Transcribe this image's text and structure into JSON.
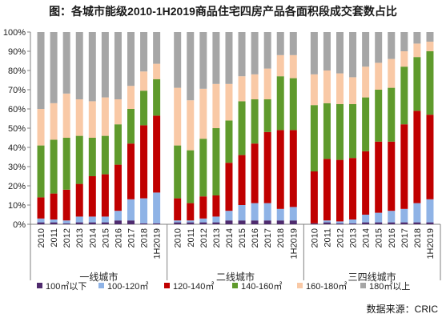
{
  "title": "图：各城市能级2010-1H2019商品住宅四房产品各面积段成交套数占比",
  "source": "数据来源：CRIC",
  "chart_data": {
    "type": "bar",
    "stacked": true,
    "ylim": [
      0,
      100
    ],
    "yticks": [
      "0%",
      "10%",
      "20%",
      "30%",
      "40%",
      "50%",
      "60%",
      "70%",
      "80%",
      "90%",
      "100%"
    ],
    "grid": false,
    "legend_position": "bottom",
    "groups": [
      {
        "name": "一线城市",
        "categories": [
          "2010",
          "2011",
          "2012",
          "2013",
          "2014",
          "2015",
          "2016",
          "2017",
          "2018",
          "1H2019"
        ],
        "series": [
          {
            "name": "100㎡以下",
            "color": "#4f2b6e",
            "values": [
              1,
              1,
              0.5,
              1,
              1,
              1,
              2,
              2,
              0.5,
              0.5
            ]
          },
          {
            "name": "100-120㎡",
            "color": "#8fb3e6",
            "values": [
              2,
              1.5,
              1.5,
              3,
              3,
              3,
              5,
              11,
              13,
              16
            ]
          },
          {
            "name": "120-140㎡",
            "color": "#c00000",
            "values": [
              11,
              13.5,
              16,
              17,
              21,
              22,
              24,
              29,
              38,
              40
            ]
          },
          {
            "name": "140-160㎡",
            "color": "#5f9a2c",
            "values": [
              27,
              28,
              27,
              25,
              20,
              20,
              21,
              18,
              18,
              19
            ]
          },
          {
            "name": "160-180㎡",
            "color": "#f9c9a6",
            "values": [
              19,
              19,
              23,
              19,
              19,
              20,
              13,
              12,
              10,
              8
            ]
          },
          {
            "name": "180㎡以上",
            "color": "#a6a6a6",
            "values": [
              40,
              37,
              32,
              35,
              36,
              34,
              35,
              28,
              20.5,
              16.5
            ]
          }
        ]
      },
      {
        "name": "二线城市",
        "categories": [
          "2010",
          "2011",
          "2012",
          "2013",
          "2014",
          "2015",
          "2016",
          "2017",
          "2018",
          "1H2019"
        ],
        "series": [
          {
            "name": "100㎡以下",
            "color": "#4f2b6e",
            "values": [
              1,
              1,
              1,
              1,
              2,
              2,
              2,
              2,
              2,
              2
            ]
          },
          {
            "name": "100-120㎡",
            "color": "#8fb3e6",
            "values": [
              1,
              1,
              2,
              3,
              5,
              8,
              9,
              9,
              6,
              7
            ]
          },
          {
            "name": "120-140㎡",
            "color": "#c00000",
            "values": [
              11.5,
              9,
              11.5,
              11,
              25,
              26,
              31,
              37,
              41,
              40
            ]
          },
          {
            "name": "140-160㎡",
            "color": "#5f9a2c",
            "values": [
              27.5,
              27.5,
              30,
              35,
              22,
              28,
              23,
              17,
              28,
              27
            ]
          },
          {
            "name": "160-180㎡",
            "color": "#f9c9a6",
            "values": [
              30,
              26,
              26,
              23,
              19,
              13,
              13,
              16,
              11,
              12
            ]
          },
          {
            "name": "180㎡以上",
            "color": "#a6a6a6",
            "values": [
              29,
              35.5,
              29.5,
              27,
              27,
              23,
              22,
              19,
              12,
              12
            ]
          }
        ]
      },
      {
        "name": "三四线城市",
        "categories": [
          "2010",
          "2011",
          "2012",
          "2013",
          "2014",
          "2015",
          "2016",
          "2017",
          "2018",
          "1H2019"
        ],
        "series": [
          {
            "name": "100㎡以下",
            "color": "#4f2b6e",
            "values": [
              0.5,
              1,
              0.5,
              0.5,
              1,
              1,
              1,
              1,
              1,
              1
            ]
          },
          {
            "name": "100-120㎡",
            "color": "#8fb3e6",
            "values": [
              0,
              1,
              1,
              2,
              4,
              5,
              6,
              7,
              10,
              12
            ]
          },
          {
            "name": "120-140㎡",
            "color": "#c00000",
            "values": [
              27,
              32,
              32,
              32,
              33,
              37,
              36,
              44,
              48,
              44
            ]
          },
          {
            "name": "140-160㎡",
            "color": "#5f9a2c",
            "values": [
              34.5,
              29,
              29,
              28,
              28,
              27,
              28,
              30,
              28,
              33
            ]
          },
          {
            "name": "160-180㎡",
            "color": "#f9c9a6",
            "values": [
              16,
              17,
              16,
              14,
              16,
              14,
              15,
              8,
              7,
              5
            ]
          },
          {
            "name": "180㎡以上",
            "color": "#a6a6a6",
            "values": [
              22,
              20,
              21.5,
              23.5,
              18,
              16,
              14,
              10,
              6,
              5
            ]
          }
        ]
      }
    ]
  }
}
